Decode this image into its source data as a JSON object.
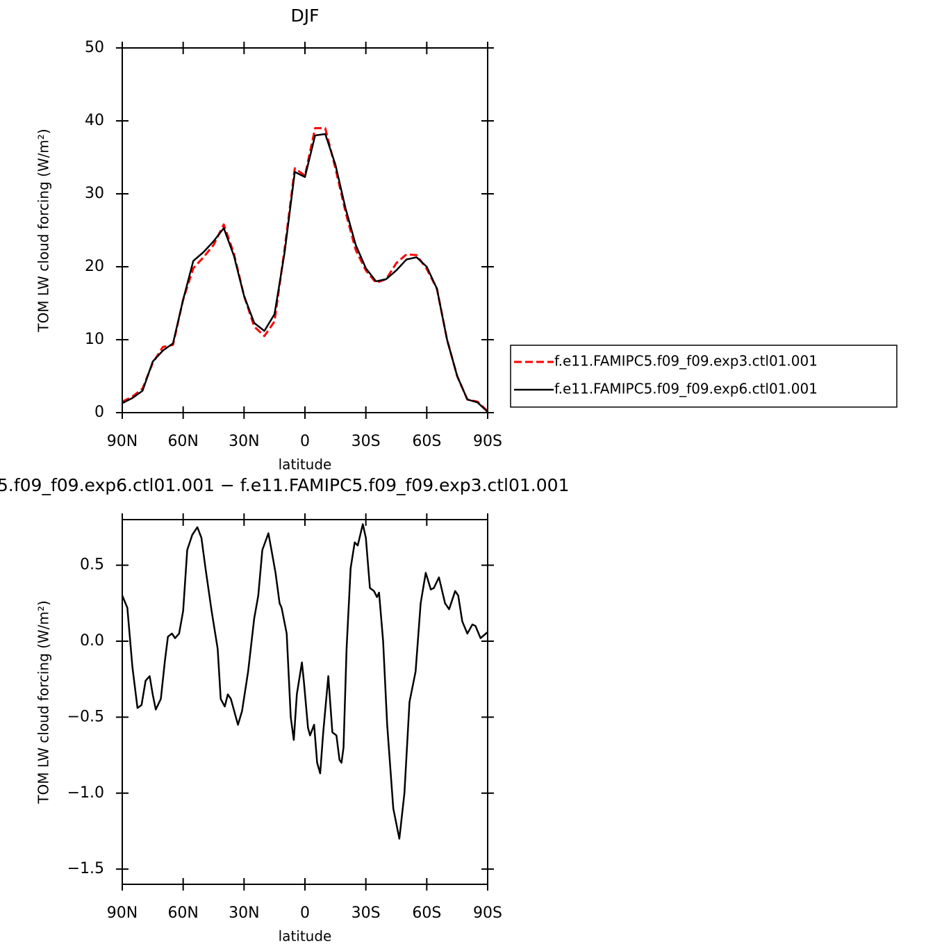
{
  "chart_data": [
    {
      "type": "line",
      "title": "DJF",
      "xlabel": "latitude",
      "ylabel": "TOM LW cloud forcing (W/m²)",
      "x": [
        90,
        85,
        80,
        75,
        70,
        65,
        60,
        55,
        50,
        45,
        40,
        35,
        30,
        25,
        20,
        15,
        10,
        5,
        0,
        -5,
        -10,
        -15,
        -20,
        -25,
        -30,
        -35,
        -40,
        -45,
        -50,
        -55,
        -60,
        -65,
        -70,
        -75,
        -80,
        -85,
        -90
      ],
      "series": [
        {
          "name": "f.e11.FAMIPC5.f09_f09.exp3.ctl01.001",
          "color": "#ff0000",
          "dash": true,
          "values": [
            1.5,
            2.2,
            3.3,
            6.8,
            9.0,
            9.3,
            15.5,
            19.8,
            21.3,
            23.0,
            25.8,
            21.8,
            16.0,
            11.8,
            10.5,
            12.5,
            22.5,
            33.5,
            32.5,
            39.0,
            39.0,
            33.5,
            27.5,
            22.3,
            19.5,
            17.8,
            18.3,
            20.5,
            21.7,
            21.6,
            19.7,
            17.0,
            10.0,
            5.0,
            1.8,
            1.5,
            0.2
          ]
        },
        {
          "name": "f.e11.FAMIPC5.f09_f09.exp6.ctl01.001",
          "color": "#000000",
          "dash": false,
          "values": [
            1.3,
            2.0,
            3.0,
            7.0,
            8.5,
            9.5,
            15.5,
            20.8,
            22.0,
            23.5,
            25.3,
            21.5,
            16.0,
            12.3,
            11.2,
            13.5,
            22.0,
            33.0,
            32.3,
            38.0,
            38.2,
            34.0,
            28.0,
            23.0,
            19.8,
            18.0,
            18.3,
            19.5,
            21.0,
            21.3,
            20.0,
            17.0,
            10.0,
            5.0,
            1.8,
            1.4,
            0.1
          ]
        }
      ],
      "xlim": [
        90,
        -90
      ],
      "xticks": [
        {
          "value": 90,
          "label": "90N"
        },
        {
          "value": 60,
          "label": "60N"
        },
        {
          "value": 30,
          "label": "30N"
        },
        0,
        {
          "value": -30,
          "label": "30S"
        },
        {
          "value": -60,
          "label": "60S"
        },
        {
          "value": -90,
          "label": "90S"
        }
      ],
      "ylim": [
        0,
        50
      ],
      "yticks": [
        0,
        10,
        20,
        30,
        40,
        50
      ],
      "legend": "outside-right"
    },
    {
      "type": "line",
      "title": "5.f09_f09.exp6.ctl01.001 − f.e11.FAMIPC5.f09_f09.exp3.ctl01.001",
      "xlabel": "latitude",
      "ylabel": "TOM LW cloud forcing (W/m²)",
      "x": [
        90,
        87.5,
        85,
        82.5,
        80.5,
        78.5,
        76.5,
        75,
        73.5,
        71,
        69,
        67.5,
        65.5,
        64,
        62,
        60,
        58,
        55.5,
        53,
        51,
        49,
        46,
        43,
        41.5,
        39.5,
        38,
        36.5,
        33,
        31,
        28,
        25,
        23,
        21,
        18,
        16.5,
        14.5,
        12.5,
        11.5,
        9,
        7,
        5.5,
        4,
        1.5,
        0.5,
        -1.5,
        -2.5,
        -4.5,
        -6,
        -7.5,
        -9,
        -11.5,
        -13.5,
        -15.5,
        -17,
        -18,
        -19,
        -20.5,
        -22.5,
        -24.5,
        -26,
        -28.5,
        -30,
        -32,
        -34,
        -35.5,
        -36.5,
        -38.5,
        -40.5,
        -43.5,
        -46.5,
        -49,
        -51.5,
        -54.5,
        -57,
        -59.5,
        -62,
        -63.5,
        -66,
        -69,
        -71,
        -74,
        -75.5,
        -77.5,
        -80,
        -82.5,
        -84,
        -86.5,
        -90
      ],
      "series": [
        {
          "color": "#000000",
          "dash": false,
          "values": [
            0.3,
            0.22,
            -0.17,
            -0.44,
            -0.42,
            -0.26,
            -0.23,
            -0.35,
            -0.45,
            -0.38,
            -0.13,
            0.03,
            0.05,
            0.02,
            0.05,
            0.2,
            0.6,
            0.7,
            0.75,
            0.68,
            0.48,
            0.2,
            -0.05,
            -0.38,
            -0.43,
            -0.35,
            -0.38,
            -0.55,
            -0.46,
            -0.2,
            0.15,
            0.3,
            0.6,
            0.71,
            0.6,
            0.45,
            0.25,
            0.22,
            0.05,
            -0.5,
            -0.65,
            -0.35,
            -0.14,
            -0.27,
            -0.57,
            -0.62,
            -0.55,
            -0.8,
            -0.87,
            -0.6,
            -0.23,
            -0.6,
            -0.62,
            -0.78,
            -0.8,
            -0.7,
            -0.05,
            0.48,
            0.65,
            0.63,
            0.77,
            0.68,
            0.35,
            0.33,
            0.29,
            0.32,
            0.0,
            -0.55,
            -1.1,
            -1.3,
            -1.0,
            -0.4,
            -0.2,
            0.25,
            0.45,
            0.34,
            0.35,
            0.42,
            0.25,
            0.21,
            0.33,
            0.3,
            0.13,
            0.05,
            0.11,
            0.1,
            0.02,
            0.06
          ]
        }
      ],
      "xlim": [
        90,
        -90
      ],
      "xticks": [
        {
          "value": 90,
          "label": "90N"
        },
        {
          "value": 60,
          "label": "60N"
        },
        {
          "value": 30,
          "label": "30N"
        },
        0,
        {
          "value": -30,
          "label": "30S"
        },
        {
          "value": -60,
          "label": "60S"
        },
        {
          "value": -90,
          "label": "90S"
        }
      ],
      "ylim": [
        -1.6,
        0.8
      ],
      "yticks": [
        {
          "value": -1.5,
          "label": "−1.5"
        },
        {
          "value": -1.0,
          "label": "−1.0"
        },
        {
          "value": -0.5,
          "label": "−0.5"
        },
        {
          "value": 0,
          "label": "0.0"
        },
        0.5
      ]
    }
  ]
}
